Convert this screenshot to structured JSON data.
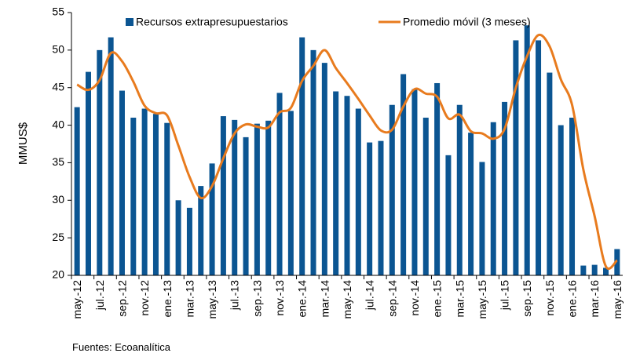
{
  "chart_data": {
    "type": "bar_line",
    "ylabel": "MMUS$",
    "source": "Fuentes: Ecoanalítica",
    "categories": [
      "may.-12",
      null,
      "jul.-12",
      null,
      "sep.-12",
      null,
      "nov.-12",
      null,
      "ene.-13",
      null,
      "mar.-13",
      null,
      "may.-13",
      null,
      "jul.-13",
      null,
      "sep.-13",
      null,
      "nov.-13",
      null,
      "ene.-14",
      null,
      "mar.-14",
      null,
      "may.-14",
      null,
      "jul.-14",
      null,
      "sep.-14",
      null,
      "nov.-14",
      null,
      "ene.-15",
      null,
      "mar.-15",
      null,
      "may.-15",
      null,
      "jul.-15",
      null,
      "sep.-15",
      null,
      "nov.-15",
      null,
      "ene.-16",
      null,
      "mar.-16",
      null,
      "may.-16"
    ],
    "series": [
      {
        "name": "Recursos extrapresupuestarios",
        "color": "#0b5592",
        "kind": "bar",
        "values": [
          42.4,
          47.1,
          50.0,
          51.7,
          44.6,
          41.0,
          42.2,
          41.5,
          40.3,
          30.0,
          29.0,
          31.9,
          34.9,
          41.2,
          40.7,
          38.4,
          40.2,
          40.6,
          44.3,
          41.9,
          51.7,
          50.0,
          48.3,
          44.5,
          43.9,
          42.2,
          37.7,
          37.9,
          42.7,
          46.8,
          44.8,
          41.0,
          45.6,
          36.0,
          42.7,
          39.0,
          35.1,
          40.4,
          43.1,
          51.3,
          53.3,
          51.3,
          47.0,
          40.0,
          41.0,
          21.3,
          21.4,
          21.0,
          23.5
        ]
      },
      {
        "name": "Promedio móvil (3 meses)",
        "color": "#e87b1e",
        "kind": "line",
        "values": [
          45.4,
          44.7,
          46.0,
          49.6,
          48.5,
          45.8,
          42.6,
          41.6,
          41.3,
          37.3,
          33.1,
          30.3,
          31.9,
          35.6,
          38.9,
          40.1,
          39.8,
          39.7,
          41.7,
          42.3,
          45.9,
          47.9,
          50.0,
          47.6,
          45.6,
          43.5,
          41.3,
          39.3,
          39.4,
          42.5,
          44.8,
          44.2,
          43.8,
          40.9,
          41.4,
          39.2,
          38.9,
          38.2,
          39.5,
          45.0,
          49.2,
          52.0,
          50.5,
          46.1,
          42.7,
          34.1,
          27.9,
          21.2,
          22.0
        ]
      }
    ],
    "ylim": [
      20,
      55
    ],
    "yticks": [
      20,
      25,
      30,
      35,
      40,
      45,
      50,
      55
    ]
  }
}
